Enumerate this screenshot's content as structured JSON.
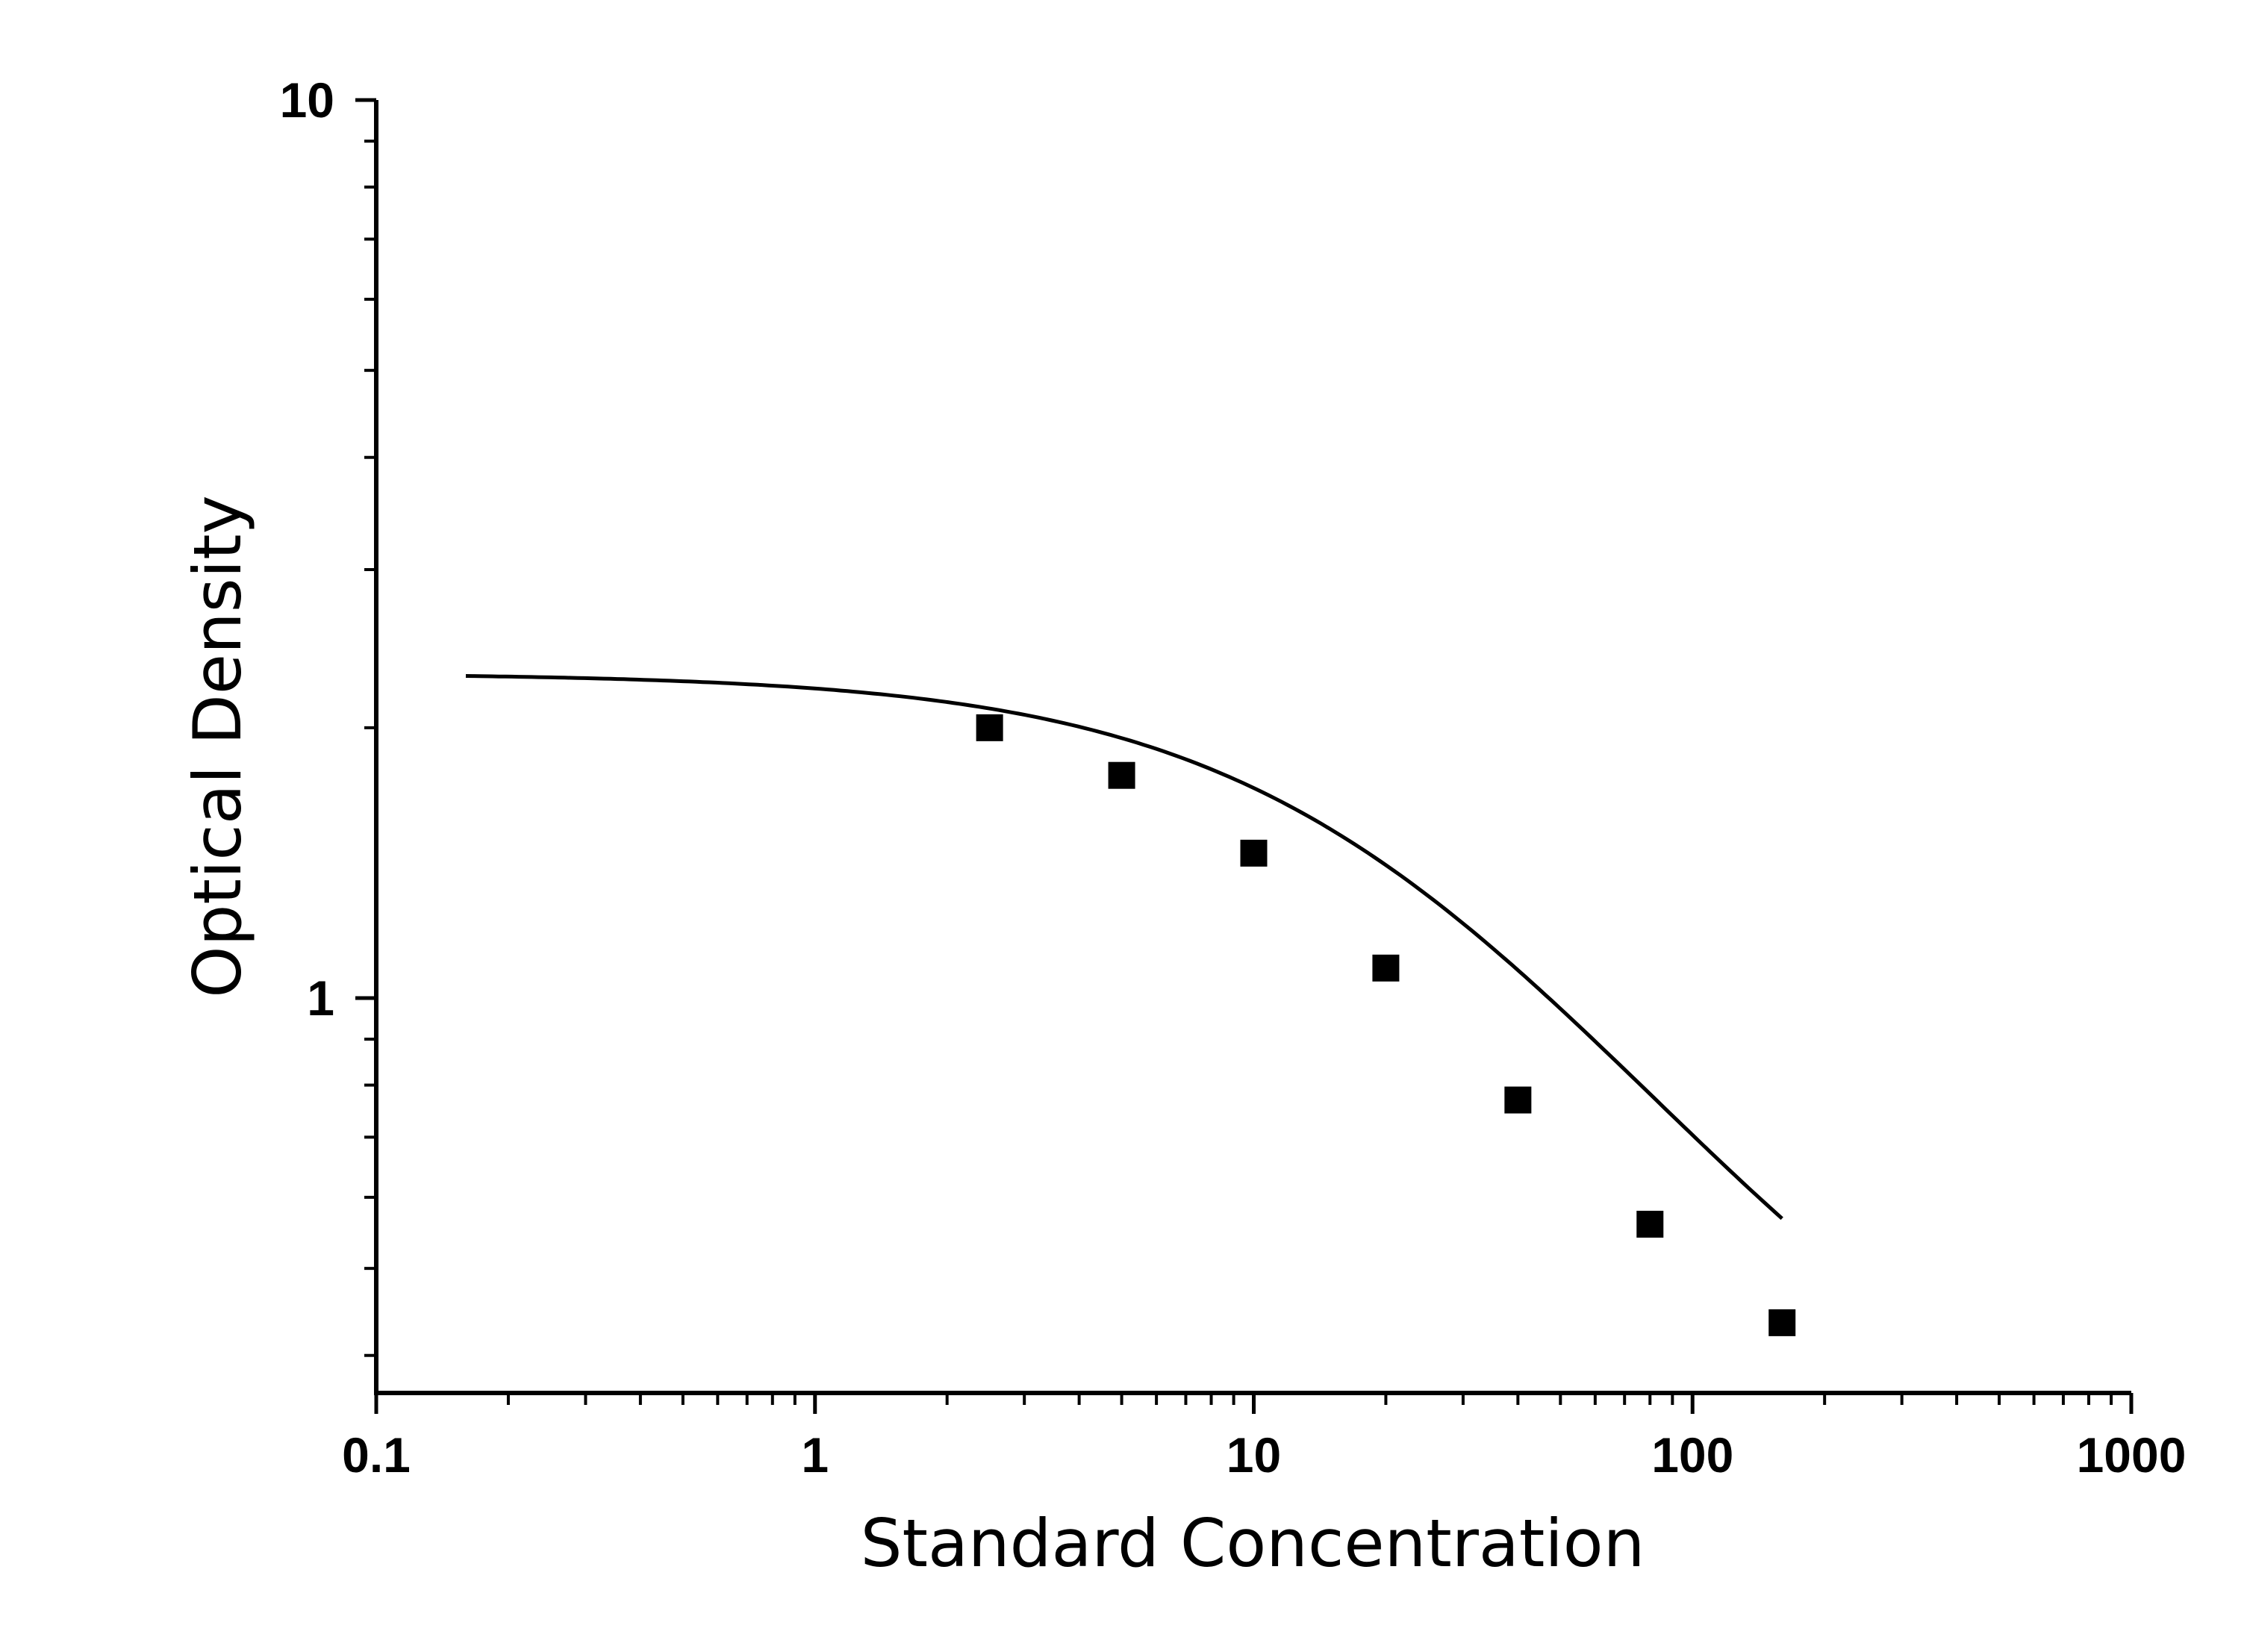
{
  "chart_data": {
    "type": "scatter",
    "title": "",
    "xlabel": "Standard Concentration",
    "ylabel": "Optical Density",
    "x_scale": "log",
    "y_scale": "log",
    "xlim": [
      0.1,
      1000
    ],
    "ylim": [
      0.4,
      10
    ],
    "x_ticks": [
      {
        "value": 0.1,
        "label": "0.1"
      },
      {
        "value": 1,
        "label": "1"
      },
      {
        "value": 10,
        "label": "10"
      },
      {
        "value": 100,
        "label": "100"
      },
      {
        "value": 1000,
        "label": "1000"
      }
    ],
    "y_ticks": [
      {
        "value": 1,
        "label": "1"
      },
      {
        "value": 10,
        "label": "10"
      }
    ],
    "grid": false,
    "legend": "none",
    "marker": "square",
    "color": "#000000",
    "series": [
      {
        "points": [
          {
            "x": 2.5,
            "y": 2.0
          },
          {
            "x": 5,
            "y": 1.77
          },
          {
            "x": 10,
            "y": 1.45
          },
          {
            "x": 20,
            "y": 1.08
          },
          {
            "x": 40,
            "y": 0.77
          },
          {
            "x": 80,
            "y": 0.56
          },
          {
            "x": 160,
            "y": 0.435
          }
        ]
      }
    ],
    "fit_curve": {
      "model": "4PL",
      "top": 2.3,
      "bottom": 0.26,
      "ec50": 26,
      "hill": 0.95,
      "x_range": [
        0.16,
        160
      ]
    }
  }
}
